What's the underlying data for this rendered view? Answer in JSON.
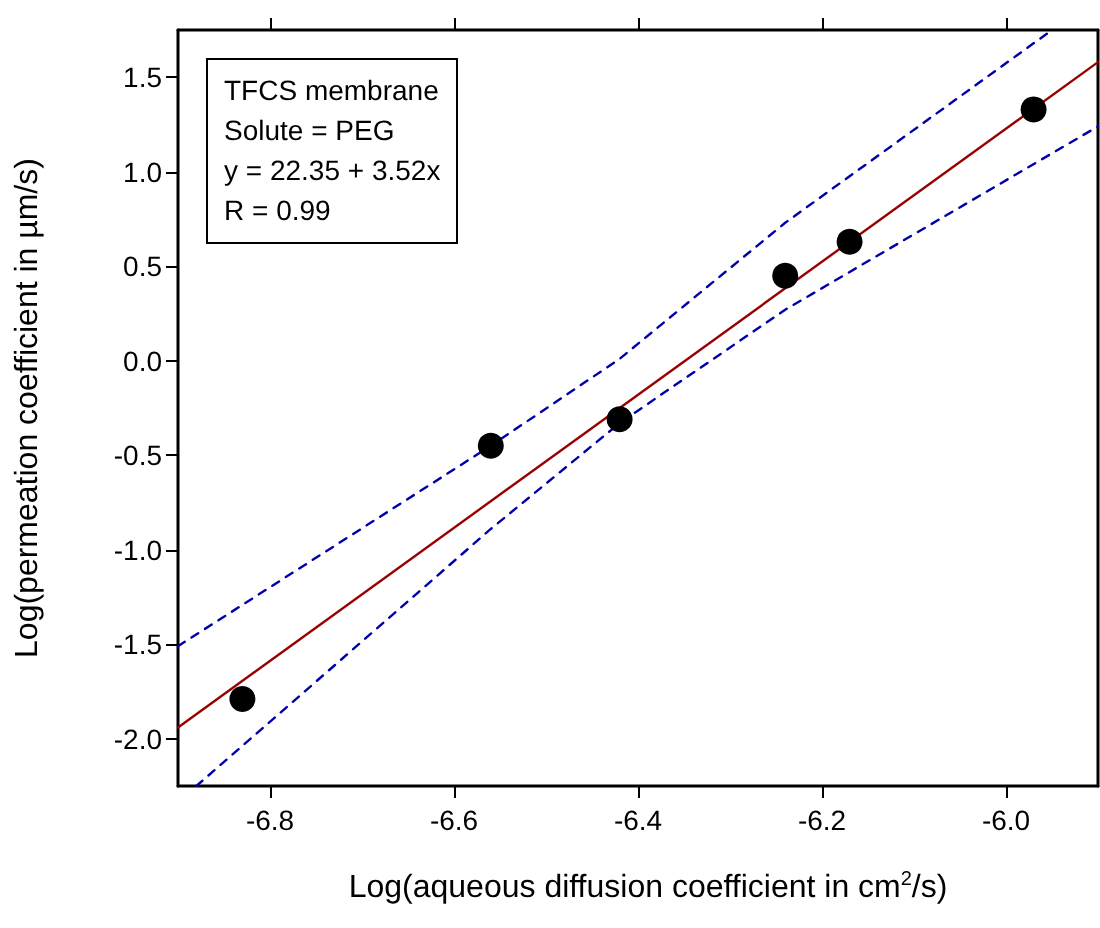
{
  "chart_data": {
    "type": "scatter",
    "xlabel": "Log(aqueous diffusion coefficient in cm$^{2}$/s)",
    "ylabel": "Log(permeation coefficient in µm/s)",
    "annotations": [
      "TFCS membrane",
      "Solute = PEG",
      "y = 22.35 + 3.52x",
      "R = 0.99"
    ],
    "xlim": [
      -6.9,
      -5.9
    ],
    "xticks": [
      -6.8,
      -6.6,
      -6.4,
      -6.2,
      {
        "value": -6,
        "label": "-6.0"
      }
    ],
    "ylim": [
      -2.25,
      1.75
    ],
    "yticks": [
      {
        "value": -2,
        "label": "-2.0"
      },
      -1.5,
      {
        "value": -1,
        "label": "-1.0"
      },
      -0.5,
      {
        "value": 0,
        "label": "0.0"
      },
      0.5,
      {
        "value": 1,
        "label": "1.0"
      },
      1.5
    ],
    "marker": "circle",
    "series": [
      {
        "type": "scatter",
        "color": "#000000",
        "x": [
          -6.83,
          -6.56,
          -6.42,
          -6.24,
          -6.17,
          -5.97
        ],
        "values": [
          -1.79,
          -0.45,
          -0.31,
          0.45,
          0.63,
          1.33
        ]
      },
      {
        "type": "line",
        "color": "#990000",
        "line_style": "solid",
        "marker": "none",
        "x": [
          -6.9,
          -5.9
        ],
        "values": [
          -1.94,
          1.58
        ]
      },
      {
        "type": "line",
        "color": "#0000aa",
        "line_style": "dashed",
        "marker": "none",
        "x": [
          -6.9,
          -6.56,
          -6.42,
          -6.24,
          -5.95
        ],
        "values": [
          -1.51,
          -0.45,
          0.01,
          0.73,
          1.75
        ]
      },
      {
        "type": "line",
        "color": "#0000aa",
        "line_style": "dashed",
        "marker": "none",
        "x": [
          -6.88,
          -6.56,
          -6.42,
          -6.24,
          -5.9
        ],
        "values": [
          -2.25,
          -0.89,
          -0.33,
          0.27,
          1.24
        ]
      }
    ]
  }
}
